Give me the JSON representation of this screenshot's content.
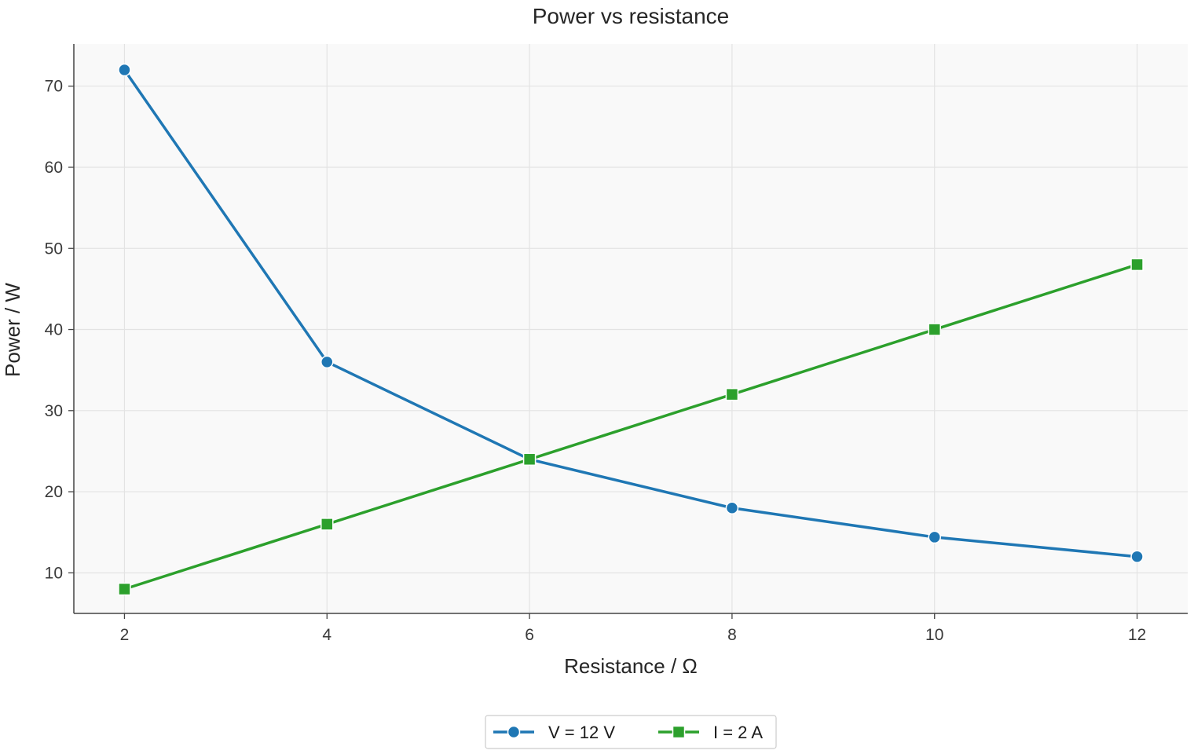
{
  "chart_data": {
    "type": "line",
    "title": "Power vs resistance",
    "xlabel": "Resistance / Ω",
    "ylabel": "Power / W",
    "x": [
      2,
      4,
      6,
      8,
      10,
      12
    ],
    "xlim": [
      1.5,
      12.5
    ],
    "ylim": [
      5,
      75.2
    ],
    "xticks": [
      2,
      4,
      6,
      8,
      10,
      12
    ],
    "yticks": [
      10,
      20,
      30,
      40,
      50,
      60,
      70
    ],
    "grid": true,
    "legend_position": "bottom-center",
    "series": [
      {
        "name": "V = 12 V",
        "values": [
          72,
          36,
          24,
          18,
          14.4,
          12
        ],
        "color": "#1f77b4",
        "marker": "circle"
      },
      {
        "name": "I = 2 A",
        "values": [
          8,
          16,
          24,
          32,
          40,
          48
        ],
        "color": "#2ca02c",
        "marker": "square"
      }
    ]
  }
}
